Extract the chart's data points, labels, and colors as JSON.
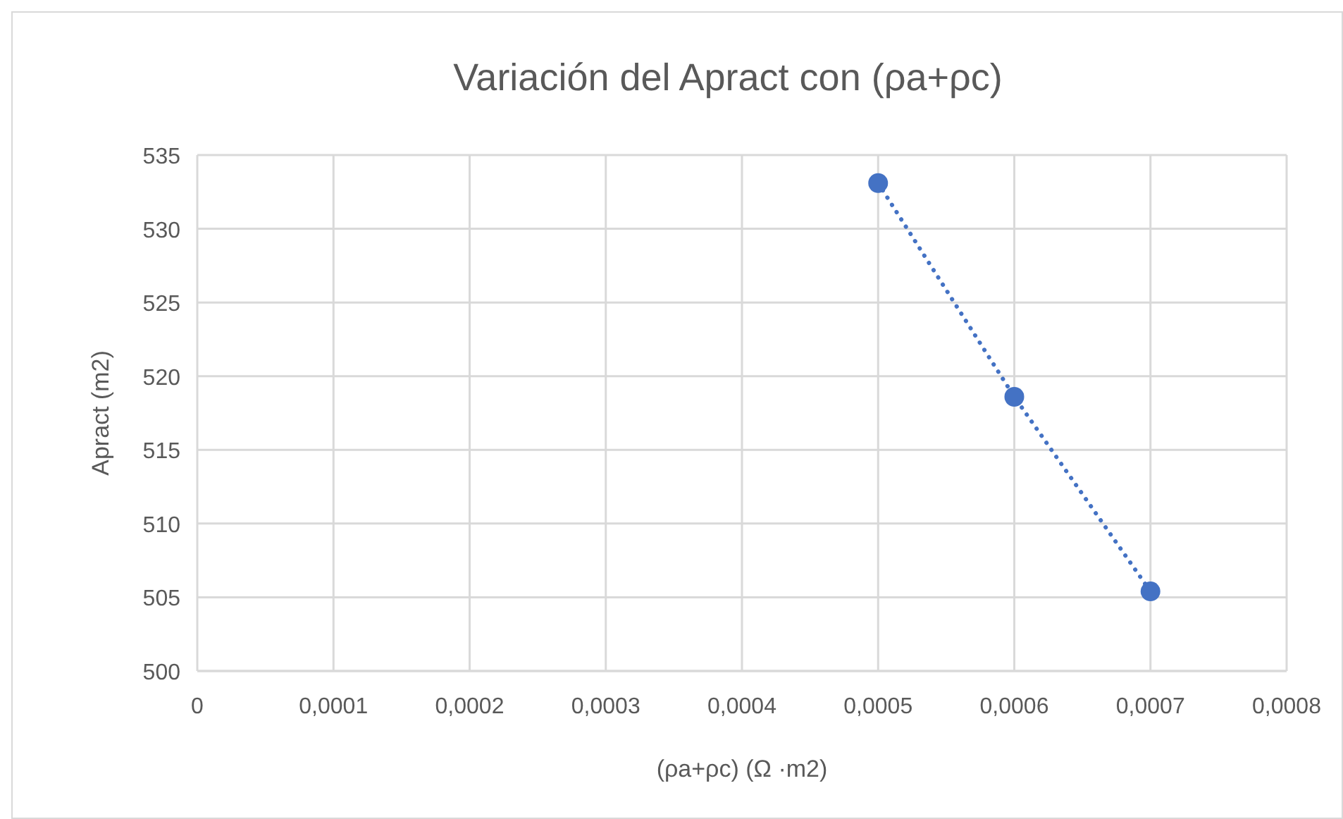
{
  "chart_data": {
    "type": "line",
    "title": "Variación del Apract con (ρa+ρc)",
    "xlabel": "(ρa+ρc) (Ω ·m2)",
    "ylabel": "Apract (m2)",
    "x": [
      0.0005,
      0.0006,
      0.0007
    ],
    "series": [
      {
        "color": "#4472c4",
        "values": [
          533.1,
          518.6,
          505.4
        ]
      }
    ],
    "xlim": [
      0,
      0.0008
    ],
    "xticks": [
      0,
      {
        "value": 0.0001,
        "label": "0,0001"
      },
      {
        "value": 0.0002,
        "label": "0,0002"
      },
      {
        "value": 0.0003,
        "label": "0,0003"
      },
      {
        "value": 0.0004,
        "label": "0,0004"
      },
      {
        "value": 0.0005,
        "label": "0,0005"
      },
      {
        "value": 0.0006,
        "label": "0,0006"
      },
      {
        "value": 0.0007,
        "label": "0,0007"
      },
      {
        "value": 0.0008,
        "label": "0,0008"
      }
    ],
    "ylim": [
      500,
      535
    ],
    "yticks": [
      500,
      505,
      510,
      515,
      520,
      525,
      530,
      535
    ],
    "grid": true,
    "marker": "circle",
    "line_style": "dotted"
  }
}
